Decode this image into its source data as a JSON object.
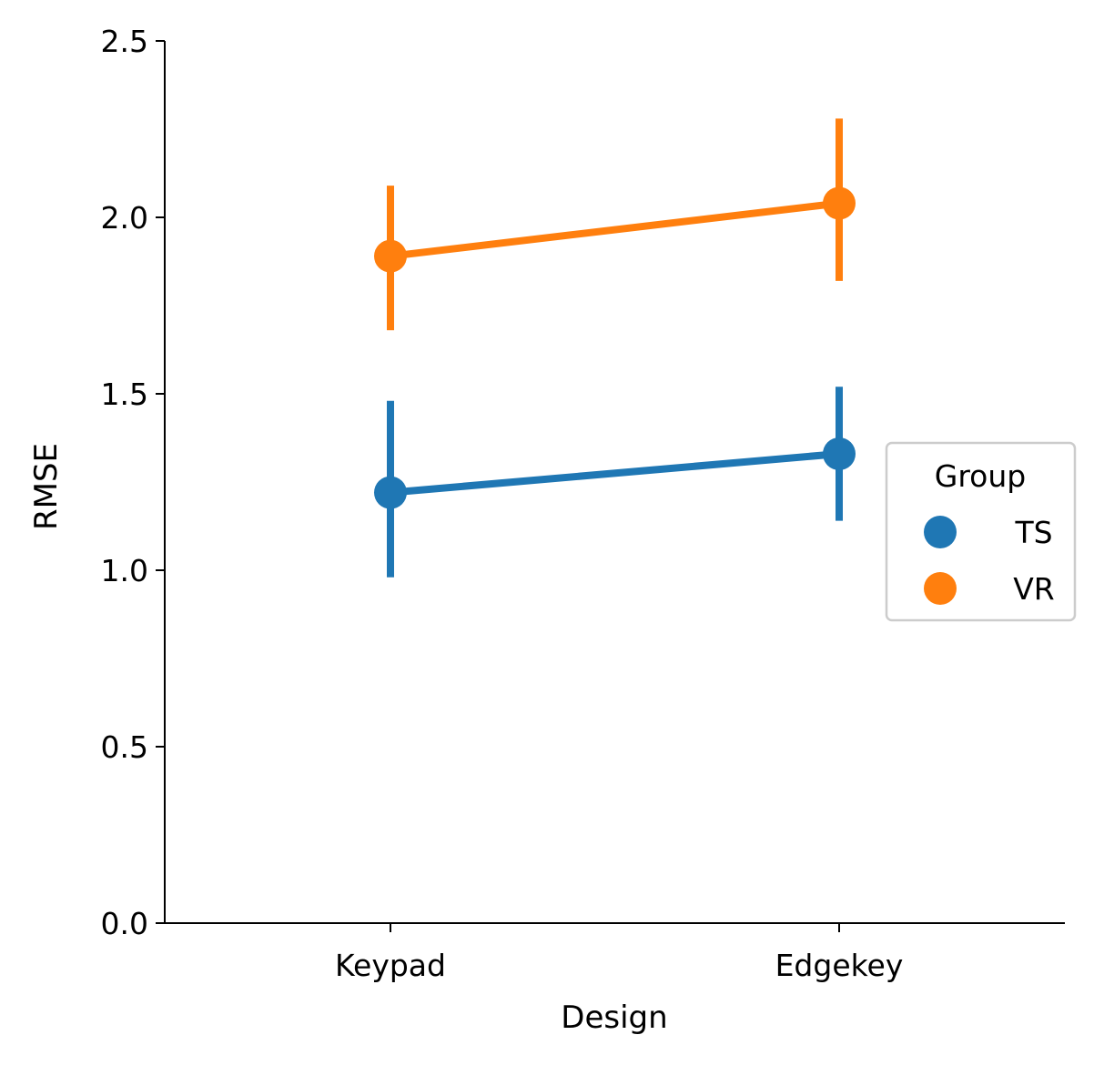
{
  "chart_data": {
    "type": "line",
    "xlabel": "Design",
    "ylabel": "RMSE",
    "ylim": [
      0,
      2.5
    ],
    "yticks": [
      "0.0",
      "0.5",
      "1.0",
      "1.5",
      "2.0",
      "2.5"
    ],
    "categories": [
      "Keypad",
      "Edgekey"
    ],
    "grid": false,
    "legend": {
      "title": "Group",
      "position": "center-right"
    },
    "series": [
      {
        "name": "TS",
        "color": "#1f77b4",
        "values": [
          1.22,
          1.33
        ],
        "ci_low": [
          0.98,
          1.14
        ],
        "ci_high": [
          1.48,
          1.52
        ]
      },
      {
        "name": "VR",
        "color": "#ff7f0e",
        "values": [
          1.89,
          2.04
        ],
        "ci_low": [
          1.68,
          1.82
        ],
        "ci_high": [
          2.09,
          2.28
        ]
      }
    ]
  }
}
